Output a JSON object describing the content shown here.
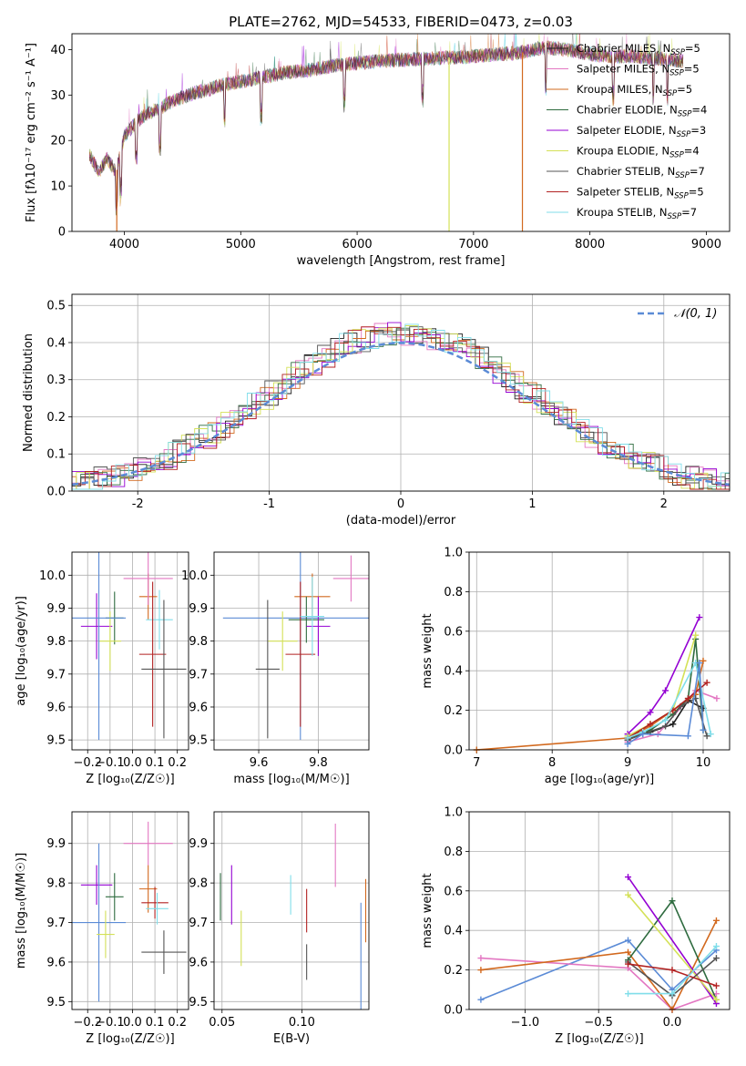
{
  "colors": {
    "chabrier_miles": "#1f1f1f",
    "salpeter_miles": "#e377c2",
    "kroupa_miles": "#d2691e",
    "chabrier_elodie": "#2e6b3f",
    "salpeter_elodie": "#9400d3",
    "kroupa_elodie": "#d4e157",
    "chabrier_stelib": "#555555",
    "salpeter_stelib": "#b22222",
    "kroupa_stelib": "#80deea",
    "normal_curve": "#5b8bd6",
    "blue_model": "#5b8bd6",
    "pink_model": "#e377c2",
    "orange_model": "#d2691e",
    "green_model": "#2e6b3f",
    "grid": "#b0b0b0"
  },
  "chart_data": [
    {
      "id": "spectrum",
      "type": "line",
      "title": "PLATE=2762, MJD=54533, FIBERID=0473, z=0.03",
      "xlabel": "wavelength [Angstrom, rest frame]",
      "ylabel": "Flux [fλ10⁻¹⁷ erg cm⁻² s⁻¹ A⁻¹]",
      "xlim": [
        3550,
        9200
      ],
      "ylim": [
        0,
        43.5
      ],
      "xticks": [
        4000,
        5000,
        6000,
        7000,
        8000,
        9000
      ],
      "yticks": [
        0,
        10,
        20,
        30,
        40
      ],
      "grid": false,
      "legend_position": "top-right",
      "spectrum_envelope": {
        "x": [
          3700,
          3780,
          3850,
          3930,
          4000,
          4100,
          4200,
          4300,
          4400,
          4500,
          4600,
          4700,
          4800,
          4900,
          5000,
          5200,
          5400,
          5600,
          5800,
          6000,
          6200,
          6400,
          6600,
          6800,
          7000,
          7200,
          7400,
          7600,
          7800,
          8000,
          8200,
          8400,
          8600,
          8800
        ],
        "y": [
          17.0,
          13.0,
          16.0,
          13.0,
          21.0,
          24.0,
          26.0,
          27.0,
          28.5,
          29.5,
          30.5,
          31.0,
          32.0,
          32.5,
          33.0,
          34.0,
          35.0,
          35.5,
          36.5,
          37.0,
          37.5,
          37.8,
          38.0,
          38.3,
          38.5,
          39.0,
          39.3,
          40.5,
          40.0,
          39.0,
          38.5,
          38.5,
          38.0,
          37.5
        ]
      },
      "legend": [
        {
          "label": "Chabrier MILES, N",
          "sub": "SSP",
          "suffix": "=5",
          "color_key": "chabrier_miles"
        },
        {
          "label": "Salpeter MILES, N",
          "sub": "SSP",
          "suffix": "=5",
          "color_key": "salpeter_miles"
        },
        {
          "label": "Kroupa MILES, N",
          "sub": "SSP",
          "suffix": "=5",
          "color_key": "kroupa_miles"
        },
        {
          "label": "Chabrier ELODIE, N",
          "sub": "SSP",
          "suffix": "=4",
          "color_key": "chabrier_elodie"
        },
        {
          "label": "Salpeter ELODIE, N",
          "sub": "SSP",
          "suffix": "=3",
          "color_key": "salpeter_elodie"
        },
        {
          "label": "Kroupa ELODIE, N",
          "sub": "SSP",
          "suffix": "=4",
          "color_key": "kroupa_elodie"
        },
        {
          "label": "Chabrier STELIB, N",
          "sub": "SSP",
          "suffix": "=7",
          "color_key": "chabrier_stelib"
        },
        {
          "label": "Salpeter STELIB, N",
          "sub": "SSP",
          "suffix": "=5",
          "color_key": "salpeter_stelib"
        },
        {
          "label": "Kroupa STELIB, N",
          "sub": "SSP",
          "suffix": "=7",
          "color_key": "kroupa_stelib"
        }
      ]
    },
    {
      "id": "residuals",
      "type": "line",
      "xlabel": "(data-model)/error",
      "ylabel": "Normed distribution",
      "xlim": [
        -2.5,
        2.5
      ],
      "ylim": [
        0,
        0.53
      ],
      "xticks": [
        -2,
        -1,
        0,
        1,
        2
      ],
      "yticks": [
        0.0,
        0.1,
        0.2,
        0.3,
        0.4,
        0.5
      ],
      "grid": true,
      "legend_position": "top-right",
      "legend": [
        {
          "label": "𝒩(0, 1)",
          "color_key": "normal_curve",
          "style": "dashed"
        }
      ],
      "histogram_bin_width": 0.1
    },
    {
      "id": "age_vs_Z",
      "type": "scatter",
      "xlabel": "Z [log₁₀(Z/Z☉)]",
      "ylabel": "age  [log₁₀(age/yr)]",
      "xlim": [
        -0.27,
        0.25
      ],
      "ylim": [
        9.47,
        10.07
      ],
      "xticks": [
        -0.2,
        -0.1,
        0.0,
        0.1,
        0.2
      ],
      "xtick_labels": [
        "−0.2",
        "−0.1",
        "0.0",
        "0.1",
        "0.2"
      ],
      "yticks": [
        9.5,
        9.6,
        9.7,
        9.8,
        9.9,
        10.0
      ],
      "grid": true,
      "points": [
        {
          "x": 0.07,
          "xerr": 0.04,
          "y": 9.935,
          "yerr": 0.07,
          "color_key": "orange_model"
        },
        {
          "x": 0.07,
          "xerr": 0.11,
          "y": 9.99,
          "yerr": 0.08,
          "color_key": "pink_model"
        },
        {
          "x": -0.16,
          "xerr": 0.07,
          "y": 9.845,
          "yerr": 0.1,
          "color_key": "salpeter_elodie"
        },
        {
          "x": -0.08,
          "xerr": 0.04,
          "y": 9.87,
          "yerr": 0.08,
          "color_key": "chabrier_elodie"
        },
        {
          "x": -0.1,
          "xerr": 0.05,
          "y": 9.8,
          "yerr": 0.09,
          "color_key": "kroupa_elodie"
        },
        {
          "x": -0.15,
          "xerr": 0.12,
          "y": 9.87,
          "yerr": 0.37,
          "color_key": "blue_model"
        },
        {
          "x": 0.12,
          "xerr": 0.06,
          "y": 9.865,
          "yerr": 0.09,
          "color_key": "kroupa_stelib"
        },
        {
          "x": 0.09,
          "xerr": 0.06,
          "y": 9.76,
          "yerr": 0.22,
          "color_key": "salpeter_stelib"
        },
        {
          "x": 0.14,
          "xerr": 0.1,
          "y": 9.715,
          "yerr": 0.21,
          "color_key": "chabrier_stelib"
        }
      ]
    },
    {
      "id": "age_vs_mass",
      "type": "scatter",
      "xlabel": "mass [log₁₀(M/M☉)]",
      "ylabel": "",
      "xlim": [
        9.45,
        9.97
      ],
      "ylim": [
        9.47,
        10.07
      ],
      "xticks": [
        9.6,
        9.8
      ],
      "yticks": [
        9.5,
        9.6,
        9.7,
        9.8,
        9.9,
        10.0
      ],
      "grid": true,
      "points": [
        {
          "x": 9.91,
          "xerr": 0.06,
          "y": 9.99,
          "yerr": 0.07,
          "color_key": "pink_model"
        },
        {
          "x": 9.78,
          "xerr": 0.06,
          "y": 9.935,
          "yerr": 0.07,
          "color_key": "orange_model"
        },
        {
          "x": 9.74,
          "xerr": 0.26,
          "y": 9.87,
          "yerr": 0.37,
          "color_key": "blue_model"
        },
        {
          "x": 9.76,
          "xerr": 0.06,
          "y": 9.865,
          "yerr": 0.07,
          "color_key": "chabrier_elodie"
        },
        {
          "x": 9.8,
          "xerr": 0.04,
          "y": 9.845,
          "yerr": 0.09,
          "color_key": "salpeter_elodie"
        },
        {
          "x": 9.68,
          "xerr": 0.05,
          "y": 9.8,
          "yerr": 0.09,
          "color_key": "kroupa_elodie"
        },
        {
          "x": 9.74,
          "xerr": 0.05,
          "y": 9.76,
          "yerr": 0.22,
          "color_key": "salpeter_stelib"
        },
        {
          "x": 9.63,
          "xerr": 0.04,
          "y": 9.715,
          "yerr": 0.21,
          "color_key": "chabrier_stelib"
        },
        {
          "x": 9.78,
          "xerr": 0.04,
          "y": 9.875,
          "yerr": 0.12,
          "color_key": "kroupa_stelib"
        }
      ]
    },
    {
      "id": "weight_vs_age",
      "type": "line",
      "xlabel": "age  [log₁₀(age/yr)]",
      "ylabel": "mass weight",
      "xlim": [
        6.9,
        10.35
      ],
      "ylim": [
        0,
        1.0
      ],
      "xticks": [
        7,
        8,
        9,
        10
      ],
      "yticks": [
        0.0,
        0.2,
        0.4,
        0.6,
        0.8,
        1.0
      ],
      "grid": true,
      "series": [
        {
          "color_key": "chabrier_miles",
          "x": [
            9.0,
            9.3,
            9.6,
            9.8,
            10.0
          ],
          "y": [
            0.06,
            0.09,
            0.13,
            0.25,
            0.21
          ]
        },
        {
          "color_key": "pink_model",
          "x": [
            9.0,
            9.4,
            9.9,
            10.18
          ],
          "y": [
            0.04,
            0.08,
            0.3,
            0.26
          ]
        },
        {
          "color_key": "orange_model",
          "x": [
            7.0,
            9.0,
            9.3,
            9.6,
            9.9,
            10.0
          ],
          "y": [
            0.0,
            0.06,
            0.12,
            0.2,
            0.28,
            0.45
          ]
        },
        {
          "color_key": "chabrier_elodie",
          "x": [
            9.0,
            9.3,
            9.6,
            9.8,
            9.9,
            10.0
          ],
          "y": [
            0.05,
            0.1,
            0.18,
            0.26,
            0.56,
            0.1
          ]
        },
        {
          "color_key": "salpeter_elodie",
          "x": [
            9.0,
            9.3,
            9.5,
            9.95
          ],
          "y": [
            0.08,
            0.19,
            0.3,
            0.67
          ]
        },
        {
          "color_key": "kroupa_elodie",
          "x": [
            9.0,
            9.3,
            9.6,
            9.9
          ],
          "y": [
            0.07,
            0.13,
            0.2,
            0.58
          ]
        },
        {
          "color_key": "chabrier_stelib",
          "x": [
            9.0,
            9.2,
            9.5,
            9.7,
            9.9,
            10.05
          ],
          "y": [
            0.05,
            0.08,
            0.12,
            0.22,
            0.26,
            0.07
          ]
        },
        {
          "color_key": "salpeter_stelib",
          "x": [
            9.0,
            9.3,
            9.6,
            9.8,
            10.05
          ],
          "y": [
            0.06,
            0.13,
            0.2,
            0.26,
            0.34
          ]
        },
        {
          "color_key": "kroupa_stelib",
          "x": [
            9.0,
            9.2,
            9.5,
            9.9,
            10.1
          ],
          "y": [
            0.06,
            0.09,
            0.15,
            0.44,
            0.08
          ]
        },
        {
          "color_key": "blue_model",
          "x": [
            9.0,
            9.2,
            9.8,
            9.95,
            10.0
          ],
          "y": [
            0.03,
            0.08,
            0.07,
            0.44,
            0.1
          ]
        }
      ]
    },
    {
      "id": "mass_vs_Z",
      "type": "scatter",
      "xlabel": "Z [log₁₀(Z/Z☉)]",
      "ylabel": "mass [log₁₀(M/M☉)]",
      "xlim": [
        -0.27,
        0.25
      ],
      "ylim": [
        9.48,
        9.98
      ],
      "xticks": [
        -0.2,
        -0.1,
        0.0,
        0.1,
        0.2
      ],
      "xtick_labels": [
        "−0.2",
        "−0.1",
        "0.0",
        "0.1",
        "0.2"
      ],
      "yticks": [
        9.5,
        9.6,
        9.7,
        9.8,
        9.9
      ],
      "grid": true,
      "points": [
        {
          "x": 0.07,
          "xerr": 0.11,
          "y": 9.9,
          "yerr": 0.055,
          "color_key": "pink_model"
        },
        {
          "x": -0.16,
          "xerr": 0.07,
          "y": 9.795,
          "yerr": 0.05,
          "color_key": "salpeter_elodie"
        },
        {
          "x": 0.07,
          "xerr": 0.04,
          "y": 9.785,
          "yerr": 0.06,
          "color_key": "orange_model"
        },
        {
          "x": -0.08,
          "xerr": 0.04,
          "y": 9.765,
          "yerr": 0.06,
          "color_key": "chabrier_elodie"
        },
        {
          "x": 0.1,
          "xerr": 0.06,
          "y": 9.75,
          "yerr": 0.04,
          "color_key": "salpeter_stelib"
        },
        {
          "x": 0.11,
          "xerr": 0.05,
          "y": 9.735,
          "yerr": 0.04,
          "color_key": "kroupa_stelib"
        },
        {
          "x": -0.15,
          "xerr": 0.12,
          "y": 9.7,
          "yerr": 0.2,
          "color_key": "blue_model"
        },
        {
          "x": -0.12,
          "xerr": 0.04,
          "y": 9.67,
          "yerr": 0.06,
          "color_key": "kroupa_elodie"
        },
        {
          "x": 0.14,
          "xerr": 0.1,
          "y": 9.625,
          "yerr": 0.055,
          "color_key": "chabrier_stelib"
        }
      ]
    },
    {
      "id": "mass_vs_EBV",
      "type": "scatter",
      "xlabel": "E(B-V)",
      "ylabel": "",
      "xlim": [
        0.045,
        0.142
      ],
      "ylim": [
        9.48,
        9.98
      ],
      "xticks": [
        0.05,
        0.1
      ],
      "xtick_labels": [
        "0.05",
        "0.10"
      ],
      "yticks": [
        9.5,
        9.6,
        9.7,
        9.8,
        9.9
      ],
      "grid": true,
      "points": [
        {
          "x": 0.049,
          "y": 9.765,
          "yerr": 0.06,
          "color_key": "chabrier_elodie"
        },
        {
          "x": 0.056,
          "y": 9.77,
          "yerr": 0.075,
          "color_key": "salpeter_elodie"
        },
        {
          "x": 0.062,
          "y": 9.66,
          "yerr": 0.07,
          "color_key": "kroupa_elodie"
        },
        {
          "x": 0.093,
          "y": 9.77,
          "yerr": 0.05,
          "color_key": "kroupa_stelib"
        },
        {
          "x": 0.103,
          "y": 9.73,
          "yerr": 0.055,
          "color_key": "salpeter_stelib"
        },
        {
          "x": 0.103,
          "y": 9.6,
          "yerr": 0.045,
          "color_key": "chabrier_stelib"
        },
        {
          "x": 0.121,
          "y": 9.87,
          "yerr": 0.08,
          "color_key": "pink_model"
        },
        {
          "x": 0.137,
          "y": 9.615,
          "yerr": 0.135,
          "color_key": "blue_model"
        },
        {
          "x": 0.14,
          "y": 9.73,
          "yerr": 0.08,
          "color_key": "orange_model"
        }
      ]
    },
    {
      "id": "weight_vs_Z",
      "type": "line",
      "xlabel": "Z [log₁₀(Z/Z☉)]",
      "ylabel": "mass weight",
      "xlim": [
        -1.38,
        0.39
      ],
      "ylim": [
        0,
        1.0
      ],
      "xticks": [
        -1.0,
        -0.5,
        0.0
      ],
      "xtick_labels": [
        "−1.0",
        "−0.5",
        "0.0"
      ],
      "yticks": [
        0.0,
        0.2,
        0.4,
        0.6,
        0.8,
        1.0
      ],
      "grid": true,
      "series": [
        {
          "color_key": "blue_model",
          "x": [
            -1.3,
            -0.3,
            0.0,
            0.3
          ],
          "y": [
            0.05,
            0.35,
            0.1,
            0.3
          ]
        },
        {
          "color_key": "pink_model",
          "x": [
            -1.3,
            -0.3,
            0.0,
            0.3
          ],
          "y": [
            0.26,
            0.21,
            0.0,
            0.08
          ]
        },
        {
          "color_key": "orange_model",
          "x": [
            -1.3,
            -0.3,
            0.0,
            0.3
          ],
          "y": [
            0.2,
            0.29,
            0.0,
            0.45
          ]
        },
        {
          "color_key": "chabrier_elodie",
          "x": [
            -0.3,
            0.0,
            0.3
          ],
          "y": [
            0.25,
            0.55,
            0.05
          ]
        },
        {
          "color_key": "salpeter_elodie",
          "x": [
            -0.3,
            0.3
          ],
          "y": [
            0.67,
            0.03
          ]
        },
        {
          "color_key": "kroupa_elodie",
          "x": [
            -0.3,
            0.3
          ],
          "y": [
            0.58,
            0.05
          ]
        },
        {
          "color_key": "chabrier_stelib",
          "x": [
            -0.3,
            0.0,
            0.3
          ],
          "y": [
            0.24,
            0.07,
            0.26
          ]
        },
        {
          "color_key": "salpeter_stelib",
          "x": [
            -0.3,
            0.0,
            0.3
          ],
          "y": [
            0.23,
            0.2,
            0.12
          ]
        },
        {
          "color_key": "kroupa_stelib",
          "x": [
            -0.3,
            0.0,
            0.3
          ],
          "y": [
            0.08,
            0.08,
            0.32
          ]
        }
      ]
    }
  ]
}
